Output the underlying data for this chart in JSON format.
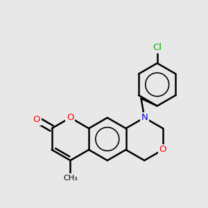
{
  "background_color": "#e8e8e8",
  "bond_color": "#000000",
  "atom_colors": {
    "O": "#ff0000",
    "N": "#0000cc",
    "Cl": "#00aa00",
    "C": "#000000"
  },
  "bond_width": 1.8,
  "figsize": [
    3.0,
    3.0
  ],
  "dpi": 100,
  "bl": 0.32
}
